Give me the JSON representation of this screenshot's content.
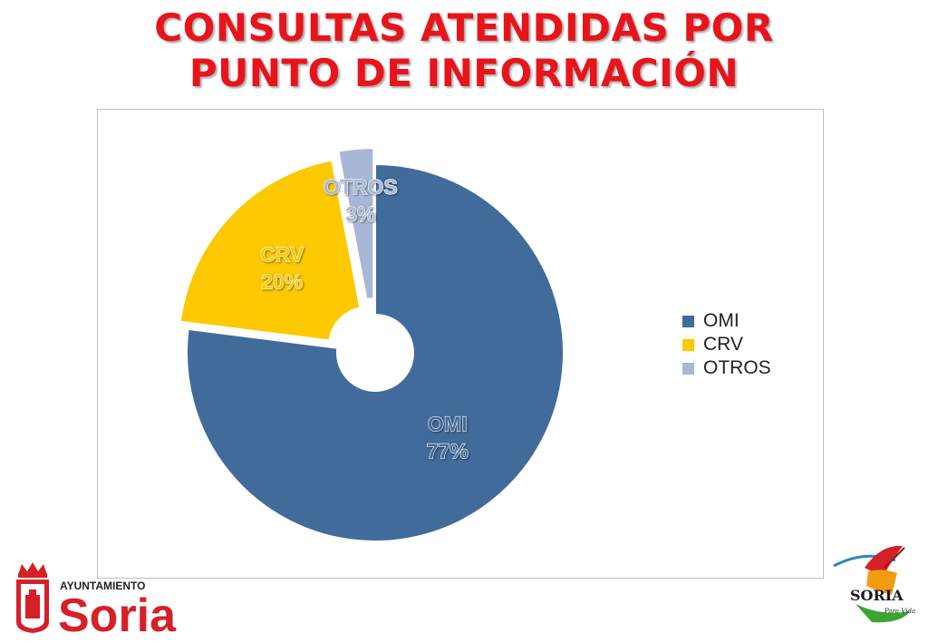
{
  "title_lines": [
    "CONSULTAS ATENDIDAS POR",
    "PUNTO DE INFORMACIÓN"
  ],
  "chart_data": {
    "type": "pie",
    "variant": "exploded-doughnut",
    "categories": [
      "OMI",
      "CRV",
      "OTROS"
    ],
    "values": [
      77,
      20,
      3
    ],
    "labels": [
      "OMI\n77%",
      "CRV\n20%",
      "OTROS\n3%"
    ],
    "colors": [
      "#416b9b",
      "#fcc900",
      "#a9b7d6"
    ],
    "legend": [
      "OMI",
      "CRV",
      "OTROS"
    ],
    "legend_position": "right"
  },
  "logos": {
    "left": {
      "line1": "AYUNTAMIENTO",
      "line2": "Soria"
    },
    "right": {
      "line1": "SORIA",
      "line2": "Para Vida"
    }
  }
}
